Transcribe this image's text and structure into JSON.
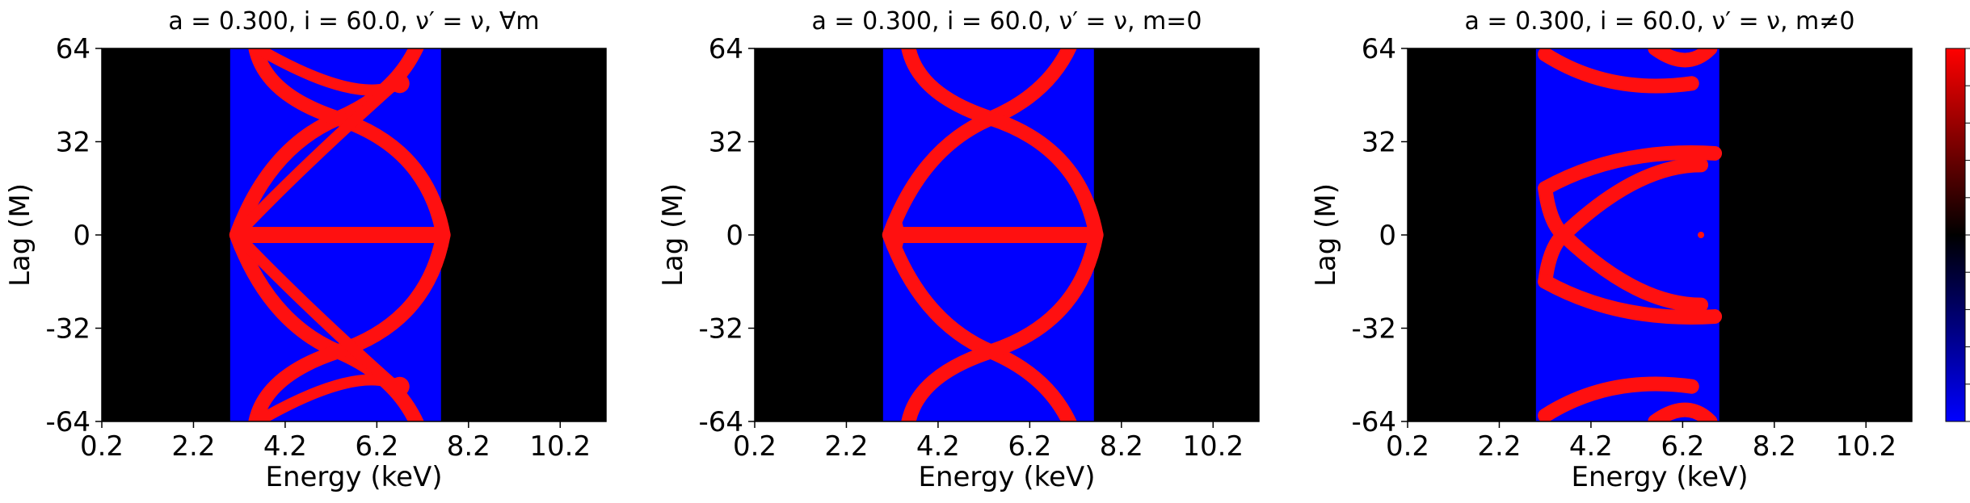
{
  "chart_data": [
    {
      "type": "heatmap",
      "title": "a = 0.300, i = 60.0, ν′ = ν, ∀m",
      "xlabel": "Energy (keV)",
      "ylabel": "Lag (M)",
      "xlim": [
        0.2,
        11.2
      ],
      "ylim": [
        -64,
        64
      ],
      "xticks": [
        "0.2",
        "2.2",
        "4.2",
        "6.2",
        "8.2",
        "10.2"
      ],
      "yticks": [
        "64",
        "32",
        "0",
        "-32",
        "-64"
      ],
      "band": [
        3.0,
        7.6
      ],
      "features": {
        "zero_line": true,
        "arcs": [
          {
            "apex": 5.35,
            "radius": 2.3
          }
        ],
        "stars": [
          6.7
        ]
      }
    },
    {
      "type": "heatmap",
      "title": "a = 0.300, i = 60.0, ν′ = ν, m=0",
      "xlabel": "Energy (keV)",
      "ylabel": "Lag (M)",
      "xlim": [
        0.2,
        11.2
      ],
      "ylim": [
        -64,
        64
      ],
      "xticks": [
        "0.2",
        "2.2",
        "4.2",
        "6.2",
        "8.2",
        "10.2"
      ],
      "yticks": [
        "64",
        "32",
        "0",
        "-32",
        "-64"
      ],
      "band": [
        3.0,
        7.6
      ],
      "features": {
        "zero_line": true,
        "arcs": [
          {
            "apex": 5.35,
            "radius": 2.3
          }
        ]
      }
    },
    {
      "type": "heatmap",
      "title": "a = 0.300, i = 60.0, ν′ = ν, m≠0",
      "xlabel": "Energy (keV)",
      "ylabel": "Lag (M)",
      "xlim": [
        0.2,
        11.2
      ],
      "ylim": [
        -64,
        64
      ],
      "xticks": [
        "0.2",
        "2.2",
        "4.2",
        "6.2",
        "8.2",
        "10.2"
      ],
      "yticks": [
        "64",
        "32",
        "0",
        "-32",
        "-64"
      ],
      "band": [
        3.0,
        7.0
      ],
      "features": {
        "zero_line": false,
        "x_shape_apex": 3.6,
        "arcs_nonzero": true
      }
    }
  ],
  "colorbar": {
    "colors": [
      "#0000ff",
      "#000000",
      "#ff0000"
    ]
  }
}
